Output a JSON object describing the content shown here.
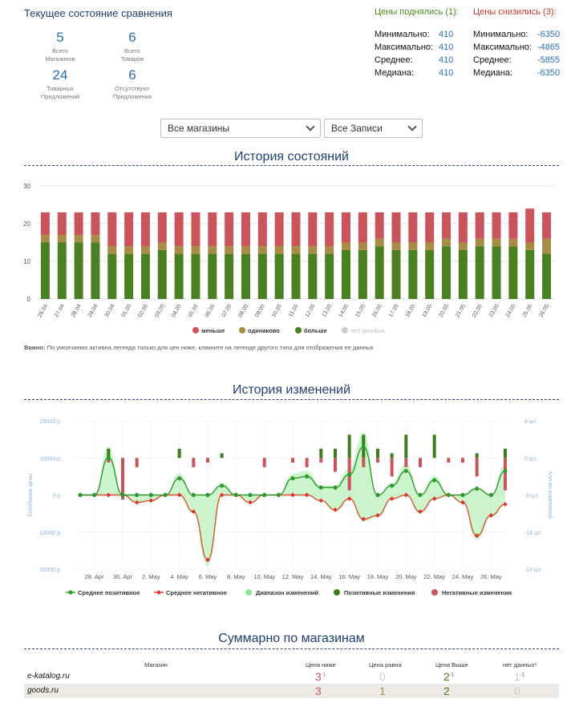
{
  "summary": {
    "title": "Текущее состояние сравнения",
    "stats": [
      {
        "value": "5",
        "label": "Всего\nМагазинов"
      },
      {
        "value": "6",
        "label": "Всего\nТоваров"
      },
      {
        "value": "24",
        "label": "Товарных\nПредложений"
      },
      {
        "value": "6",
        "label": "Отсутствуют\nПредложения"
      }
    ],
    "up": {
      "heading": "Цены поднялись (1):",
      "rows": [
        {
          "k": "Минимально:",
          "v": "410"
        },
        {
          "k": "Максимально:",
          "v": "410"
        },
        {
          "k": "Среднее:",
          "v": "410"
        },
        {
          "k": "Медиана:",
          "v": "410"
        }
      ]
    },
    "down": {
      "heading": "Цены снизились (3):",
      "rows": [
        {
          "k": "Минимально:",
          "v": "-6350"
        },
        {
          "k": "Максимально:",
          "v": "-4865"
        },
        {
          "k": "Среднее:",
          "v": "-5855"
        },
        {
          "k": "Медиана:",
          "v": "-6350"
        }
      ]
    }
  },
  "filters": {
    "shops": "Все магазины",
    "records": "Все Записи"
  },
  "history": {
    "title": "История состояний",
    "note_bold": "Важно:",
    "note": " По умолчанию активна легенда только для цен ниже, кликните на легенде другого типа для отображения ее данных"
  },
  "changes": {
    "title": "История изменений"
  },
  "shops": {
    "title": "Суммарно по магазинам",
    "headers": [
      "Магазин",
      "Цена ниже",
      "Цена равна",
      "Цена Выше",
      "нет данных*"
    ],
    "rows": [
      {
        "name": "e-katalog.ru",
        "lower": "3",
        "lower_sup": "-1",
        "equal": "0",
        "higher": "2",
        "higher_sup": "-1",
        "nodata": "1",
        "nodata_sup": "-1"
      },
      {
        "name": "goods.ru",
        "lower": "3",
        "lower_sup": "",
        "equal": "1",
        "higher": "2",
        "higher_sup": "",
        "nodata": "0",
        "nodata_sup": ""
      }
    ]
  },
  "chart_data": [
    {
      "type": "bar",
      "stacked": true,
      "title": "История состояний",
      "categories": [
        "26.04",
        "27.04",
        "28.04",
        "29.04",
        "30.04",
        "01.05",
        "02.05",
        "03.05",
        "04.05",
        "05.05",
        "06.05",
        "07.05",
        "08.05",
        "09.05",
        "10.05",
        "11.05",
        "12.05",
        "13.05",
        "14.05",
        "15.05",
        "16.05",
        "17.05",
        "18.05",
        "19.05",
        "20.05",
        "21.05",
        "22.05",
        "23.05",
        "24.05",
        "25.05",
        "26.05"
      ],
      "ylim": [
        0,
        30
      ],
      "yticks": [
        "0",
        "10",
        "20",
        "30"
      ],
      "series": [
        {
          "name": "больше",
          "color": "#4a7f22",
          "values": [
            15,
            15,
            15,
            15,
            12,
            12,
            12,
            13,
            12,
            12,
            12,
            12,
            12,
            12,
            12,
            12,
            12,
            12,
            13,
            13,
            14,
            13,
            13,
            13,
            14,
            13,
            14,
            14,
            14,
            13,
            12
          ]
        },
        {
          "name": "одинаково",
          "color": "#a88b45",
          "values": [
            2,
            2,
            2,
            2,
            2,
            2,
            2,
            2,
            2,
            2,
            2,
            2,
            2,
            2,
            2,
            2,
            2,
            2,
            2,
            2,
            2,
            2,
            2,
            2,
            2,
            2,
            2,
            2,
            2,
            2,
            4
          ]
        },
        {
          "name": "меньше",
          "color": "#c9555a",
          "values": [
            6,
            6,
            6,
            6,
            9,
            9,
            9,
            8,
            9,
            9,
            9,
            9,
            9,
            9,
            9,
            9,
            9,
            9,
            8,
            8,
            7,
            8,
            8,
            8,
            7,
            8,
            7,
            7,
            7,
            9,
            7
          ]
        }
      ],
      "legend": [
        {
          "name": "меньше",
          "color": "#c9555a"
        },
        {
          "name": "одинаково",
          "color": "#a88b45"
        },
        {
          "name": "больше",
          "color": "#4a7f22"
        },
        {
          "name": "нет данных",
          "color": "#cccccc"
        }
      ],
      "legend_position": "bottom"
    },
    {
      "type": "line",
      "title": "История изменений",
      "ylabel": "Колебания цены",
      "y2label": "Кол-во изменений",
      "ylim": [
        -20000,
        20000
      ],
      "yticks": [
        "20000 р.",
        "10000 р.",
        "0 р.",
        "-10000 р.",
        "-20000 р."
      ],
      "y2lim": [
        -24,
        8
      ],
      "y2ticks": [
        "8 шт.",
        "0 шт.",
        "-8 шт.",
        "-16 шт.",
        "-24 шт."
      ],
      "xticks": [
        "28. Apr",
        "30. Apr",
        "2. May",
        "4. May",
        "6. May",
        "8. May",
        "10. May",
        "12. May",
        "14. May",
        "16. May",
        "18. May",
        "20. May",
        "22. May",
        "24. May",
        "26. May"
      ],
      "series": [
        {
          "name": "Среднее позитивное",
          "color": "#2e9a2e",
          "values": [
            0,
            0,
            10000,
            0,
            0,
            0,
            0,
            4500,
            0,
            0,
            2500,
            0,
            0,
            0,
            0,
            4500,
            5000,
            2000,
            2000,
            5500,
            13000,
            0,
            2500,
            6500,
            0,
            4000,
            0,
            0,
            1700,
            0,
            6500
          ]
        },
        {
          "name": "Среднее негативное",
          "color": "#e0312b",
          "values": [
            0,
            0,
            0,
            0,
            -2000,
            -1500,
            0,
            0,
            -4500,
            -17500,
            0,
            0,
            -2000,
            0,
            0,
            0,
            0,
            -1500,
            -4000,
            -1000,
            -6500,
            -5500,
            -1000,
            0,
            -4500,
            -1000,
            0,
            -2000,
            -11000,
            -5500,
            -2500
          ]
        },
        {
          "name": "Диапазон изменений",
          "color": "#90e890"
        },
        {
          "name": "Позитивные изменения",
          "color": "#3e7d1c",
          "values": [
            0,
            0,
            2,
            0,
            0,
            0,
            0,
            2,
            0,
            0,
            1,
            0,
            0,
            0,
            0,
            0,
            0,
            2,
            2,
            5,
            5,
            2,
            1,
            5,
            0,
            5,
            0,
            0,
            1,
            0,
            2
          ]
        },
        {
          "name": "Негативные изменения",
          "color": "#c9555a",
          "values": [
            0,
            0,
            -1,
            -9,
            -2,
            0,
            0,
            0,
            -2,
            -1,
            0,
            0,
            0,
            -2,
            0,
            -1,
            -2,
            -1,
            -3,
            -7,
            -2,
            -1,
            -4,
            -2,
            -2,
            0,
            -1,
            -1,
            -4,
            0,
            -7
          ]
        }
      ],
      "legend_position": "bottom"
    }
  ]
}
